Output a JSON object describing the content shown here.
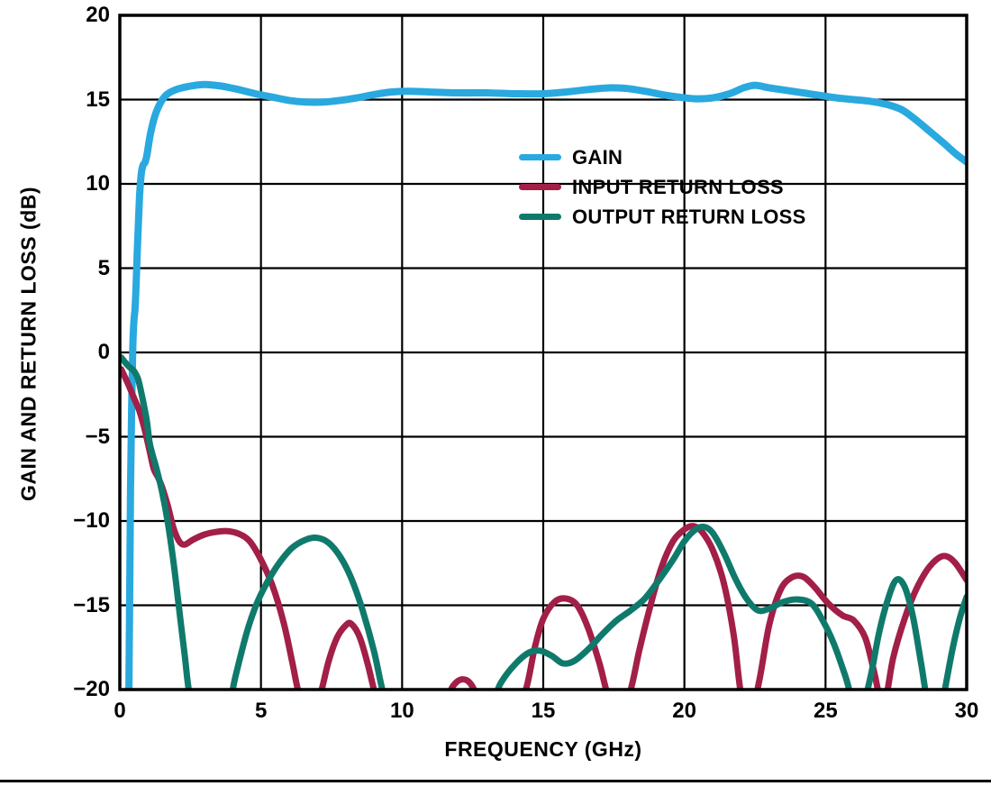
{
  "chart_data": {
    "type": "line",
    "title": "",
    "xlabel": "FREQUENCY (GHz)",
    "ylabel": "GAIN AND RETURN LOSS (dB)",
    "xlim": [
      0,
      30
    ],
    "ylim": [
      -20,
      20
    ],
    "x_ticks": [
      0,
      5,
      10,
      15,
      20,
      25,
      30
    ],
    "x_tick_labels": [
      "0",
      "5",
      "10",
      "15",
      "20",
      "25",
      "30"
    ],
    "y_ticks": [
      20,
      15,
      10,
      5,
      0,
      -5,
      -10,
      -15,
      -20
    ],
    "y_tick_labels": [
      "20",
      "15",
      "10",
      "5",
      "0",
      "−5",
      "−10",
      "−15",
      "−20"
    ],
    "grid": true,
    "grid_color": "#000000",
    "legend_position": "inside upper-center-right",
    "series": [
      {
        "name": "GAIN",
        "color": "#29A9DF",
        "stroke_width": 8,
        "points": [
          [
            0.32,
            -20.5
          ],
          [
            0.35,
            -14
          ],
          [
            0.38,
            -8
          ],
          [
            0.42,
            -3
          ],
          [
            0.46,
            0.3
          ],
          [
            0.5,
            1.9
          ],
          [
            0.54,
            2.6
          ],
          [
            0.58,
            4.2
          ],
          [
            0.64,
            7.0
          ],
          [
            0.7,
            9.3
          ],
          [
            0.76,
            10.6
          ],
          [
            0.82,
            11.1
          ],
          [
            0.9,
            11.3
          ],
          [
            0.97,
            11.8
          ],
          [
            1.1,
            13.1
          ],
          [
            1.3,
            14.3
          ],
          [
            1.6,
            15.2
          ],
          [
            2.0,
            15.6
          ],
          [
            2.5,
            15.8
          ],
          [
            3.0,
            15.9
          ],
          [
            3.6,
            15.8
          ],
          [
            4.2,
            15.6
          ],
          [
            4.8,
            15.35
          ],
          [
            5.4,
            15.15
          ],
          [
            6.0,
            14.95
          ],
          [
            6.6,
            14.85
          ],
          [
            7.2,
            14.85
          ],
          [
            7.8,
            14.95
          ],
          [
            8.4,
            15.1
          ],
          [
            9.0,
            15.3
          ],
          [
            9.6,
            15.45
          ],
          [
            10.2,
            15.5
          ],
          [
            11.0,
            15.45
          ],
          [
            12.0,
            15.4
          ],
          [
            13.0,
            15.4
          ],
          [
            14.0,
            15.35
          ],
          [
            15.0,
            15.35
          ],
          [
            15.8,
            15.45
          ],
          [
            16.6,
            15.6
          ],
          [
            17.4,
            15.7
          ],
          [
            18.0,
            15.65
          ],
          [
            18.6,
            15.5
          ],
          [
            19.2,
            15.3
          ],
          [
            19.8,
            15.15
          ],
          [
            20.4,
            15.05
          ],
          [
            21.0,
            15.1
          ],
          [
            21.6,
            15.35
          ],
          [
            22.1,
            15.7
          ],
          [
            22.5,
            15.85
          ],
          [
            23.0,
            15.7
          ],
          [
            23.6,
            15.55
          ],
          [
            24.2,
            15.4
          ],
          [
            24.8,
            15.25
          ],
          [
            25.4,
            15.1
          ],
          [
            26.0,
            15.0
          ],
          [
            26.6,
            14.9
          ],
          [
            27.2,
            14.7
          ],
          [
            27.7,
            14.4
          ],
          [
            28.2,
            13.8
          ],
          [
            28.7,
            13.1
          ],
          [
            29.2,
            12.4
          ],
          [
            29.6,
            11.8
          ],
          [
            30,
            11.3
          ]
        ]
      },
      {
        "name": "INPUT RETURN LOSS",
        "color": "#A21F47",
        "stroke_width": 7,
        "points": [
          [
            0.05,
            -1.0
          ],
          [
            0.3,
            -1.9
          ],
          [
            0.5,
            -2.7
          ],
          [
            0.7,
            -3.5
          ],
          [
            0.9,
            -4.7
          ],
          [
            1.05,
            -5.8
          ],
          [
            1.2,
            -6.9
          ],
          [
            1.35,
            -7.4
          ],
          [
            1.5,
            -8.0
          ],
          [
            1.7,
            -9.1
          ],
          [
            1.9,
            -10.4
          ],
          [
            2.1,
            -11.2
          ],
          [
            2.3,
            -11.4
          ],
          [
            2.6,
            -11.1
          ],
          [
            3.0,
            -10.8
          ],
          [
            3.4,
            -10.65
          ],
          [
            3.8,
            -10.6
          ],
          [
            4.2,
            -10.75
          ],
          [
            4.6,
            -11.2
          ],
          [
            5.0,
            -12.3
          ],
          [
            5.4,
            -13.8
          ],
          [
            5.8,
            -16.0
          ],
          [
            6.1,
            -18.3
          ],
          [
            6.35,
            -20.3
          ],
          [
            6.7,
            -22
          ],
          [
            7.1,
            -20.3
          ],
          [
            7.4,
            -18.3
          ],
          [
            7.7,
            -16.9
          ],
          [
            8.0,
            -16.2
          ],
          [
            8.2,
            -16.1
          ],
          [
            8.5,
            -16.9
          ],
          [
            8.8,
            -18.6
          ],
          [
            9.05,
            -20.3
          ],
          [
            9.4,
            -22
          ],
          [
            10.5,
            -23
          ],
          [
            11.5,
            -20.8
          ],
          [
            11.8,
            -19.8
          ],
          [
            12.1,
            -19.4
          ],
          [
            12.4,
            -19.6
          ],
          [
            12.65,
            -20.4
          ],
          [
            13.0,
            -22
          ],
          [
            14.0,
            -21.5
          ],
          [
            14.4,
            -19.9
          ],
          [
            14.7,
            -17.5
          ],
          [
            15.0,
            -15.8
          ],
          [
            15.4,
            -14.8
          ],
          [
            15.8,
            -14.6
          ],
          [
            16.2,
            -15.0
          ],
          [
            16.6,
            -16.4
          ],
          [
            17.0,
            -18.5
          ],
          [
            17.3,
            -20.4
          ],
          [
            17.7,
            -21.8
          ],
          [
            18.1,
            -20.0
          ],
          [
            18.4,
            -17.7
          ],
          [
            18.8,
            -15.0
          ],
          [
            19.2,
            -12.7
          ],
          [
            19.6,
            -11.2
          ],
          [
            20.0,
            -10.5
          ],
          [
            20.3,
            -10.3
          ],
          [
            20.6,
            -10.6
          ],
          [
            21.0,
            -11.7
          ],
          [
            21.4,
            -13.7
          ],
          [
            21.75,
            -16.8
          ],
          [
            22.0,
            -20.2
          ],
          [
            22.3,
            -21.8
          ],
          [
            22.65,
            -19.5
          ],
          [
            23.0,
            -16.2
          ],
          [
            23.4,
            -14.1
          ],
          [
            23.8,
            -13.35
          ],
          [
            24.2,
            -13.3
          ],
          [
            24.6,
            -13.9
          ],
          [
            25.1,
            -14.9
          ],
          [
            25.6,
            -15.6
          ],
          [
            26.0,
            -15.9
          ],
          [
            26.4,
            -16.9
          ],
          [
            26.7,
            -18.8
          ],
          [
            26.95,
            -20.6
          ],
          [
            27.15,
            -20.4
          ],
          [
            27.4,
            -18.1
          ],
          [
            27.8,
            -15.8
          ],
          [
            28.2,
            -14.1
          ],
          [
            28.6,
            -12.9
          ],
          [
            29.0,
            -12.2
          ],
          [
            29.3,
            -12.1
          ],
          [
            29.6,
            -12.5
          ],
          [
            30,
            -13.5
          ]
        ]
      },
      {
        "name": "OUTPUT RETURN LOSS",
        "color": "#0F7A6C",
        "stroke_width": 7,
        "points": [
          [
            0.05,
            -0.3
          ],
          [
            0.3,
            -0.8
          ],
          [
            0.5,
            -1.1
          ],
          [
            0.65,
            -1.6
          ],
          [
            0.8,
            -2.7
          ],
          [
            0.95,
            -4.0
          ],
          [
            1.05,
            -5.3
          ],
          [
            1.15,
            -6.0
          ],
          [
            1.3,
            -6.9
          ],
          [
            1.5,
            -8.3
          ],
          [
            1.7,
            -10.1
          ],
          [
            1.9,
            -12.4
          ],
          [
            2.1,
            -15.2
          ],
          [
            2.3,
            -18.0
          ],
          [
            2.5,
            -20.5
          ],
          [
            3.0,
            -23
          ],
          [
            3.7,
            -22
          ],
          [
            4.1,
            -19.2
          ],
          [
            4.5,
            -16.6
          ],
          [
            4.85,
            -14.9
          ],
          [
            5.2,
            -13.7
          ],
          [
            5.6,
            -12.6
          ],
          [
            6.1,
            -11.6
          ],
          [
            6.6,
            -11.1
          ],
          [
            7.0,
            -11.0
          ],
          [
            7.4,
            -11.3
          ],
          [
            7.8,
            -12.1
          ],
          [
            8.2,
            -13.4
          ],
          [
            8.6,
            -15.3
          ],
          [
            9.0,
            -17.7
          ],
          [
            9.3,
            -20.0
          ],
          [
            9.7,
            -22.5
          ],
          [
            11.5,
            -24
          ],
          [
            13.0,
            -21.3
          ],
          [
            13.5,
            -19.6
          ],
          [
            14.0,
            -18.5
          ],
          [
            14.5,
            -17.8
          ],
          [
            14.9,
            -17.7
          ],
          [
            15.3,
            -18.0
          ],
          [
            15.7,
            -18.45
          ],
          [
            16.1,
            -18.3
          ],
          [
            16.6,
            -17.6
          ],
          [
            17.1,
            -16.7
          ],
          [
            17.6,
            -15.9
          ],
          [
            18.1,
            -15.3
          ],
          [
            18.6,
            -14.6
          ],
          [
            19.1,
            -13.5
          ],
          [
            19.6,
            -12.3
          ],
          [
            20.0,
            -11.2
          ],
          [
            20.4,
            -10.5
          ],
          [
            20.7,
            -10.35
          ],
          [
            21.0,
            -10.7
          ],
          [
            21.4,
            -11.9
          ],
          [
            21.8,
            -13.4
          ],
          [
            22.2,
            -14.6
          ],
          [
            22.6,
            -15.3
          ],
          [
            23.0,
            -15.2
          ],
          [
            23.5,
            -14.8
          ],
          [
            24.0,
            -14.65
          ],
          [
            24.5,
            -14.9
          ],
          [
            24.9,
            -15.9
          ],
          [
            25.3,
            -17.3
          ],
          [
            25.7,
            -19.2
          ],
          [
            26.0,
            -20.8
          ],
          [
            26.3,
            -21
          ],
          [
            26.6,
            -19.2
          ],
          [
            26.9,
            -16.6
          ],
          [
            27.2,
            -14.7
          ],
          [
            27.5,
            -13.5
          ],
          [
            27.8,
            -13.9
          ],
          [
            28.1,
            -15.7
          ],
          [
            28.4,
            -18.6
          ],
          [
            28.65,
            -21
          ],
          [
            29.0,
            -22
          ],
          [
            29.25,
            -19.8
          ],
          [
            29.5,
            -17.6
          ],
          [
            29.75,
            -15.8
          ],
          [
            30,
            -14.5
          ]
        ]
      }
    ]
  }
}
